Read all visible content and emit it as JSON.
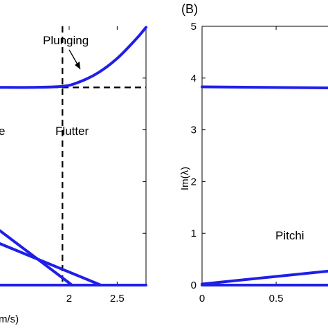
{
  "chart_data": [
    {
      "type": "line",
      "panel_label": "",
      "xlabel": "U (m/s)",
      "xlabel_visible": "m/s)",
      "ylabel": "",
      "x_ticks": [
        "2",
        "2.5"
      ],
      "x_tick_values": [
        2,
        2.5
      ],
      "xlim": [
        1.28,
        2.8
      ],
      "ylim": [
        0,
        5
      ],
      "grid": false,
      "annotations": [
        {
          "text": "Plunging",
          "arrow": true
        },
        {
          "text": "Flutter"
        },
        {
          "text": "e"
        }
      ],
      "flutter_speed": 1.93,
      "reference_level": 3.82,
      "series": [
        {
          "name": "Plunging",
          "color": "#1f1fe8",
          "x": [
            1.28,
            1.6,
            1.93,
            2.1,
            2.3,
            2.5,
            2.7,
            2.8
          ],
          "y": [
            3.82,
            3.82,
            3.84,
            3.92,
            4.1,
            4.38,
            4.76,
            4.98
          ]
        },
        {
          "color": "#1f1fe8",
          "x": [
            1.28,
            2.03
          ],
          "y": [
            1.05,
            0.0
          ]
        },
        {
          "color": "#1f1fe8",
          "x": [
            1.28,
            2.33
          ],
          "y": [
            0.8,
            0.0
          ]
        },
        {
          "color": "#1f1fe8",
          "x": [
            1.28,
            2.8
          ],
          "y": [
            0.0,
            0.0
          ]
        }
      ]
    },
    {
      "type": "line",
      "panel_label": "(B)",
      "xlabel": "",
      "ylabel": "Im(λ)",
      "x_ticks": [
        "0",
        "0.5"
      ],
      "x_tick_values": [
        0,
        0.5
      ],
      "y_ticks": [
        "0",
        "1",
        "2",
        "3",
        "4",
        "5"
      ],
      "y_tick_values": [
        0,
        1,
        2,
        3,
        4,
        5
      ],
      "xlim": [
        0,
        0.85
      ],
      "ylim": [
        0,
        5
      ],
      "grid": false,
      "annotations": [
        {
          "text": "Pitchi"
        }
      ],
      "series": [
        {
          "color": "#1f1fe8",
          "x": [
            0,
            0.85
          ],
          "y": [
            3.83,
            3.81
          ]
        },
        {
          "color": "#1f1fe8",
          "x": [
            0,
            0.85
          ],
          "y": [
            0.02,
            0.27
          ]
        },
        {
          "color": "#1f1fe8",
          "x": [
            0,
            0.85
          ],
          "y": [
            0.0,
            0.0
          ]
        }
      ]
    }
  ]
}
